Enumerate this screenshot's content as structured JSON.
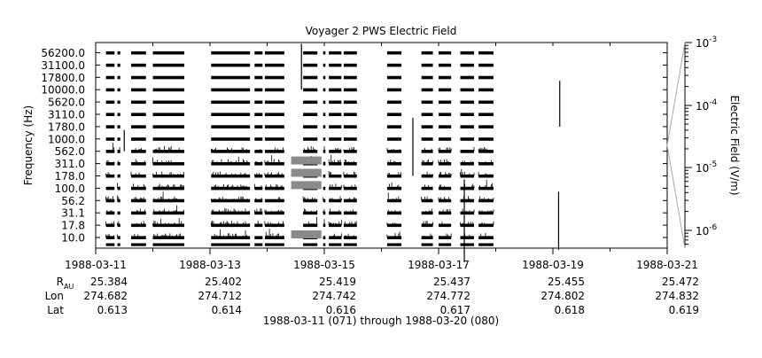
{
  "chart_data": {
    "type": "line",
    "title": "Voyager 2 PWS Electric Field",
    "ylabel": "Frequency (Hz)",
    "colorbar_label": "Electric Field (V/m)",
    "xlabel": "1988-03-11 (071) through 1988-03-20 (080)",
    "y_tick_labels": [
      "56200.0",
      "31100.0",
      "17800.0",
      "10000.0",
      "5620.0",
      "3110.0",
      "1780.0",
      "1000.0",
      "562.0",
      "311.0",
      "178.0",
      "100.0",
      "56.2",
      "31.1",
      "17.8",
      "10.0"
    ],
    "x_tick_labels": [
      "1988-03-11",
      "1988-03-13",
      "1988-03-15",
      "1988-03-17",
      "1988-03-19",
      "1988-03-21"
    ],
    "xlim": [
      "1988-03-11",
      "1988-03-21"
    ],
    "colorbar_ticks": [
      {
        "label": "10",
        "exp": "-3"
      },
      {
        "label": "10",
        "exp": "-4"
      },
      {
        "label": "10",
        "exp": "-5"
      },
      {
        "label": "10",
        "exp": "-6"
      }
    ],
    "ephemeris": {
      "rows": [
        {
          "label": "R",
          "sub": "AU",
          "values": [
            "25.384",
            "25.402",
            "25.419",
            "25.437",
            "25.455",
            "25.472"
          ]
        },
        {
          "label": "Lon",
          "sub": "",
          "values": [
            "274.682",
            "274.712",
            "274.742",
            "274.772",
            "274.802",
            "274.832"
          ]
        },
        {
          "label": "Lat",
          "sub": "",
          "values": [
            "0.613",
            "0.614",
            "0.616",
            "0.617",
            "0.618",
            "0.619"
          ]
        }
      ]
    },
    "data_segments_days": [
      [
        0.18,
        0.33
      ],
      [
        0.38,
        0.43
      ],
      [
        0.62,
        0.88
      ],
      [
        1.0,
        1.55
      ],
      [
        2.02,
        2.7
      ],
      [
        2.78,
        2.92
      ],
      [
        2.96,
        3.3
      ],
      [
        3.63,
        3.88
      ],
      [
        3.98,
        4.02
      ],
      [
        4.08,
        4.3
      ],
      [
        4.34,
        4.57
      ],
      [
        5.1,
        5.35
      ],
      [
        5.7,
        5.9
      ],
      [
        6.0,
        6.22
      ],
      [
        6.38,
        6.62
      ],
      [
        6.7,
        6.96
      ]
    ]
  }
}
